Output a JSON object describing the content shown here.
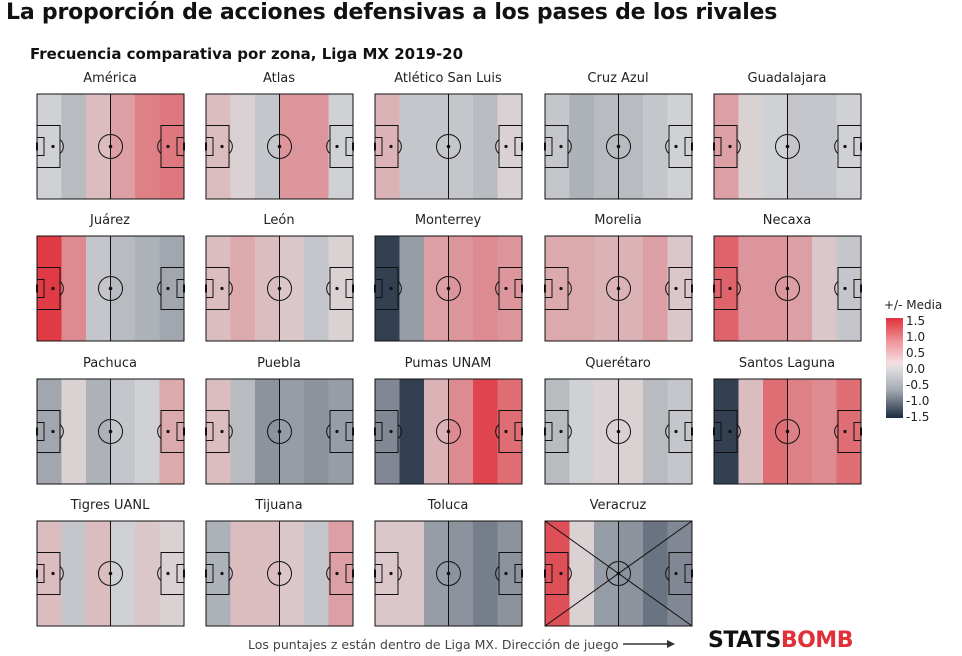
{
  "title": "La proporción de acciones defensivas a los pases de los rivales",
  "subtitle": "Frecuencia comparativa por zona, Liga MX 2019-20",
  "footnote": "Los puntajes z están dentro de Liga MX. Dirección de juego",
  "logo": {
    "part1": "STATS",
    "part2": "BOMB"
  },
  "legend": {
    "title": "+/- Media",
    "ticks": [
      "1.5",
      "1.0",
      "0.5",
      "0.0",
      "-0.5",
      "-1.0",
      "-1.5"
    ],
    "tick_values": [
      1.5,
      1.0,
      0.5,
      0.0,
      -0.5,
      -1.0,
      -1.5
    ],
    "range": [
      -1.7,
      1.7
    ]
  },
  "colors": {
    "high": "#e0313b",
    "mid": "#dadbdd",
    "low": "#1c2b40",
    "line": "#111111"
  },
  "chart_data": {
    "type": "heatmap",
    "zones_per_pitch": 6,
    "direction_of_play": "left-to-right",
    "teams": [
      {
        "name": "América",
        "values": [
          -0.1,
          -0.3,
          0.3,
          0.6,
          0.9,
          1.0
        ]
      },
      {
        "name": "Atlas",
        "values": [
          0.3,
          0.1,
          -0.2,
          0.7,
          0.7,
          -0.1
        ]
      },
      {
        "name": "Atlético San Luis",
        "values": [
          0.4,
          -0.2,
          -0.2,
          -0.2,
          -0.3,
          0.1
        ]
      },
      {
        "name": "Cruz Azul",
        "values": [
          -0.2,
          -0.4,
          -0.3,
          -0.3,
          -0.2,
          -0.1
        ]
      },
      {
        "name": "Guadalajara",
        "values": [
          0.6,
          0.1,
          -0.1,
          -0.2,
          -0.2,
          -0.1
        ]
      },
      {
        "name": "Juárez",
        "values": [
          1.6,
          0.8,
          -0.2,
          -0.3,
          -0.4,
          -0.5
        ]
      },
      {
        "name": "León",
        "values": [
          0.3,
          0.5,
          0.3,
          0.2,
          -0.2,
          0.1
        ]
      },
      {
        "name": "Monterrey",
        "values": [
          -1.5,
          -0.6,
          0.6,
          0.7,
          0.8,
          0.7
        ]
      },
      {
        "name": "Morelia",
        "values": [
          0.5,
          0.5,
          0.4,
          0.4,
          0.6,
          0.2
        ]
      },
      {
        "name": "Necaxa",
        "values": [
          1.2,
          0.7,
          0.7,
          0.6,
          0.2,
          -0.2
        ]
      },
      {
        "name": "Pachuca",
        "values": [
          -0.5,
          0.1,
          -0.4,
          -0.2,
          -0.1,
          0.5
        ]
      },
      {
        "name": "Puebla",
        "values": [
          0.3,
          -0.3,
          -0.7,
          -0.6,
          -0.7,
          -0.6
        ]
      },
      {
        "name": "Pumas UNAM",
        "values": [
          -0.8,
          -1.5,
          0.4,
          0.8,
          1.5,
          1.1
        ]
      },
      {
        "name": "Querétaro",
        "values": [
          -0.3,
          -0.1,
          0.1,
          0.1,
          -0.3,
          -0.2
        ]
      },
      {
        "name": "Santos Laguna",
        "values": [
          -1.5,
          0.3,
          1.1,
          0.9,
          0.8,
          1.1
        ]
      },
      {
        "name": "Tigres UANL",
        "values": [
          0.3,
          -0.2,
          0.3,
          -0.1,
          0.2,
          0.1
        ]
      },
      {
        "name": "Tijuana",
        "values": [
          -0.4,
          0.3,
          0.3,
          0.2,
          -0.2,
          0.6
        ]
      },
      {
        "name": "Toluca",
        "values": [
          0.2,
          0.2,
          -0.6,
          -0.7,
          -0.9,
          -0.7
        ]
      },
      {
        "name": "Veracruz",
        "values": [
          1.4,
          0.1,
          -0.6,
          -0.7,
          -1.0,
          -0.8
        ],
        "crossed_out": true
      }
    ]
  }
}
